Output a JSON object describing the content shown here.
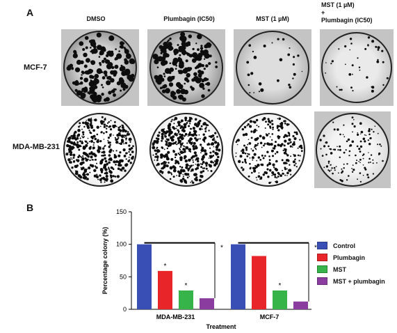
{
  "figure": {
    "panel_a": "A",
    "panel_b": "B",
    "columns": [
      {
        "line1": "DMSO",
        "line2": ""
      },
      {
        "line1": "Plumbagin (IC50)",
        "line2": ""
      },
      {
        "line1": "MST (1 µM)",
        "line2": ""
      },
      {
        "line1": "MST (1 µM)",
        "line2": "+",
        "line3": "Plumbagin (IC50)"
      }
    ],
    "rows": [
      "MCF-7",
      "MDA-MB-231"
    ]
  },
  "chart_data": {
    "type": "bar",
    "categories": [
      "MDA-MB-231",
      "MCF-7"
    ],
    "series": [
      {
        "name": "Control",
        "color": "#3a4fb5",
        "values": [
          100,
          100
        ]
      },
      {
        "name": "Plumbagin",
        "color": "#e8262a",
        "values": [
          59,
          82
        ]
      },
      {
        "name": "MST",
        "color": "#36b449",
        "values": [
          29,
          29
        ]
      },
      {
        "name": "MST + plumbagin",
        "color": "#8a3d9e",
        "values": [
          17,
          12
        ]
      }
    ],
    "xlabel": "Treatment",
    "ylabel": "Percentage colony (%)",
    "ylim": [
      0,
      150
    ],
    "yticks": [
      "0",
      "50",
      "100",
      "150"
    ],
    "significance_mark": "*",
    "significant_bars": [
      [
        0,
        1
      ],
      [
        0,
        2
      ],
      [
        1,
        2
      ]
    ],
    "bracket_groups": [
      0,
      1
    ],
    "legend_position": "right"
  }
}
